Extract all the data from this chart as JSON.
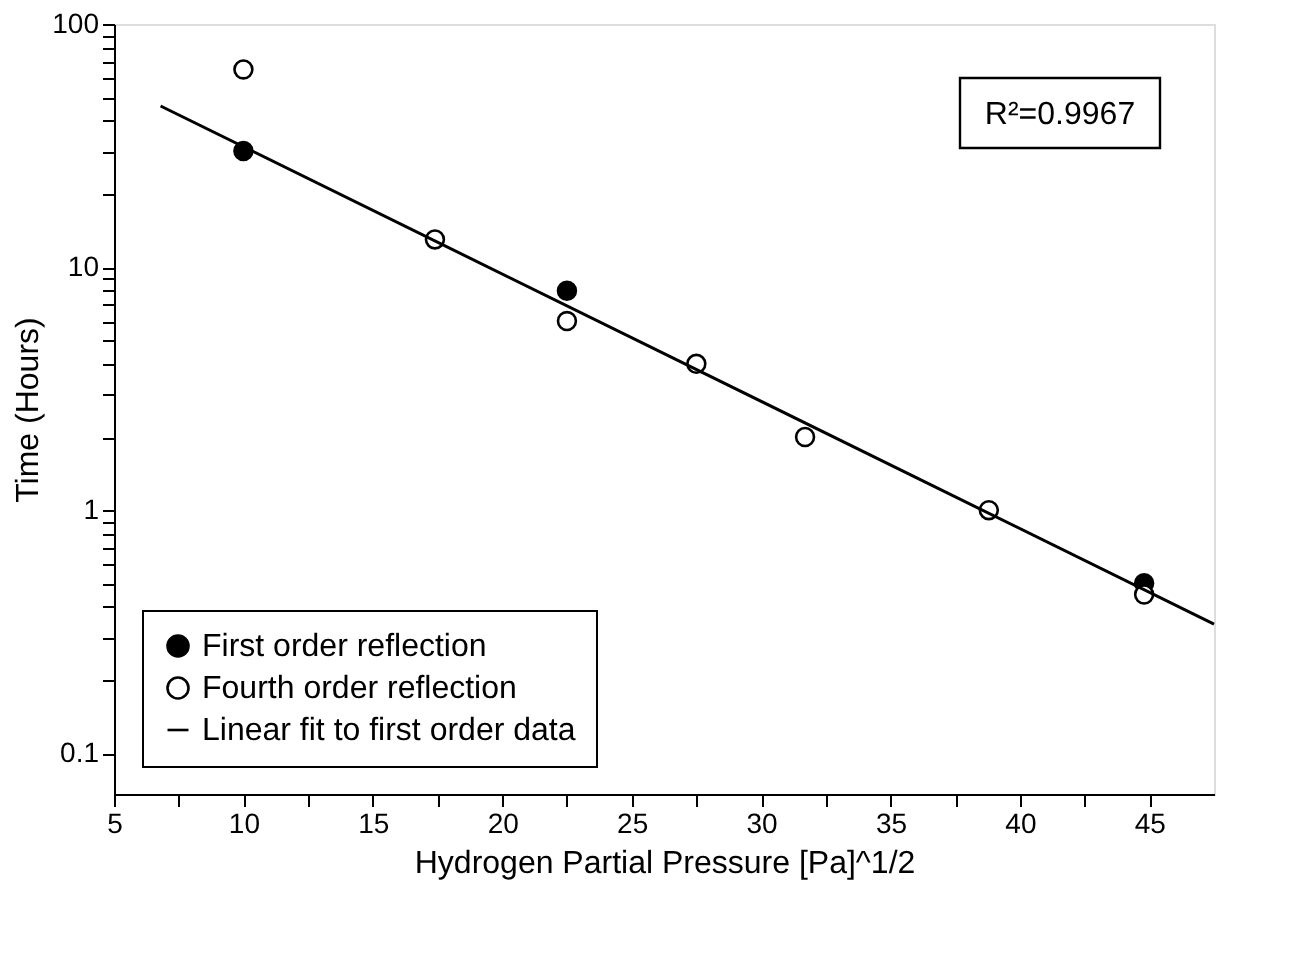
{
  "chart_data": {
    "type": "scatter",
    "xlabel": "Hydrogen Partial Pressure [Pa]^1/2",
    "ylabel": "Time (Hours)",
    "annotations": [
      "R²=0.9967"
    ],
    "log": "y",
    "grid": false,
    "legend": "bottom left",
    "xlim": [
      5,
      47.5
    ],
    "xticks": [
      5,
      {
        "value": 7.5,
        "label": null
      },
      10,
      {
        "value": 12.5,
        "label": null
      },
      15,
      {
        "value": 17.5,
        "label": null
      },
      20,
      {
        "value": 22.5,
        "label": null
      },
      25,
      {
        "value": 27.5,
        "label": null
      },
      30,
      {
        "value": 32.5,
        "label": null
      },
      35,
      {
        "value": 37.5,
        "label": null
      },
      40,
      {
        "value": 42.5,
        "label": null
      },
      45
    ],
    "ylim": [
      0.068,
      100
    ],
    "yticks": [
      0.1,
      {
        "value": 0.2,
        "label": null
      },
      {
        "value": 0.3,
        "label": null
      },
      {
        "value": 0.4,
        "label": null
      },
      {
        "value": 0.5,
        "label": null
      },
      {
        "value": 0.6,
        "label": null
      },
      {
        "value": 0.7,
        "label": null
      },
      {
        "value": 0.8,
        "label": null
      },
      {
        "value": 0.9,
        "label": null
      },
      1,
      {
        "value": 2,
        "label": null
      },
      {
        "value": 3,
        "label": null
      },
      {
        "value": 4,
        "label": null
      },
      {
        "value": 5,
        "label": null
      },
      {
        "value": 6,
        "label": null
      },
      {
        "value": 7,
        "label": null
      },
      {
        "value": 8,
        "label": null
      },
      {
        "value": 9,
        "label": null
      },
      10,
      {
        "value": 20,
        "label": null
      },
      {
        "value": 30,
        "label": null
      },
      {
        "value": 40,
        "label": null
      },
      {
        "value": 50,
        "label": null
      },
      {
        "value": 60,
        "label": null
      },
      {
        "value": 70,
        "label": null
      },
      {
        "value": 80,
        "label": null
      },
      {
        "value": 90,
        "label": null
      },
      100
    ],
    "series": [
      {
        "name": "First order reflection",
        "color": "#000000",
        "x": [
          10,
          22.5,
          44.8
        ],
        "values": [
          30,
          8,
          0.5
        ]
      },
      {
        "name": "Fourth order reflection",
        "color": "#000000",
        "x": [
          10,
          17.4,
          22.5,
          27.5,
          31.7,
          38.8,
          44.8
        ],
        "values": [
          65,
          13,
          6,
          4,
          2,
          1,
          0.45
        ]
      },
      {
        "name": "Linear fit to first order data",
        "type": "line",
        "color": "#000000",
        "line_style": "solid",
        "x": [
          6.8,
          47.5
        ],
        "values": [
          46,
          0.34
        ]
      }
    ]
  }
}
